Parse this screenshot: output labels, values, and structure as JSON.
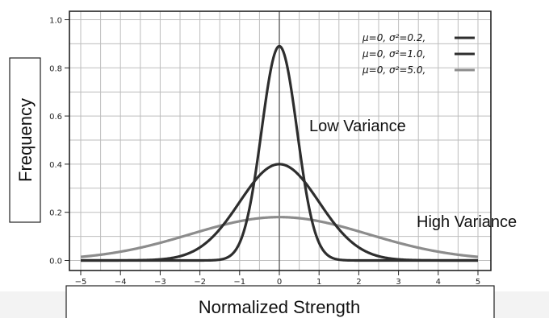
{
  "chart_data": {
    "type": "line",
    "xlabel": "Normalized Strength",
    "ylabel": "Frequency",
    "xlim": [
      -5,
      5
    ],
    "ylim": [
      0,
      1.05
    ],
    "x_ticks": [
      "−5",
      "−4",
      "−3",
      "−2",
      "−1",
      "0",
      "1",
      "2",
      "3",
      "4",
      "5"
    ],
    "y_ticks": [
      "0.0",
      "0.2",
      "0.4",
      "0.6",
      "0.8",
      "1.0"
    ],
    "grid": true,
    "legend_position": "top-right",
    "series": [
      {
        "name": "μ=0,   σ²=0.2,",
        "mu": 0,
        "variance": 0.2,
        "color": "#2e2e2e",
        "peak": 0.89
      },
      {
        "name": "μ=0,   σ²=1.0,",
        "mu": 0,
        "variance": 1.0,
        "color": "#2e2e2e",
        "peak": 0.4
      },
      {
        "name": "μ=0,   σ²=5.0,",
        "mu": 0,
        "variance": 5.0,
        "color": "#8c8c8c",
        "peak": 0.18
      }
    ],
    "annotations": [
      {
        "text": "Low Variance"
      },
      {
        "text": "High Variance"
      }
    ]
  }
}
